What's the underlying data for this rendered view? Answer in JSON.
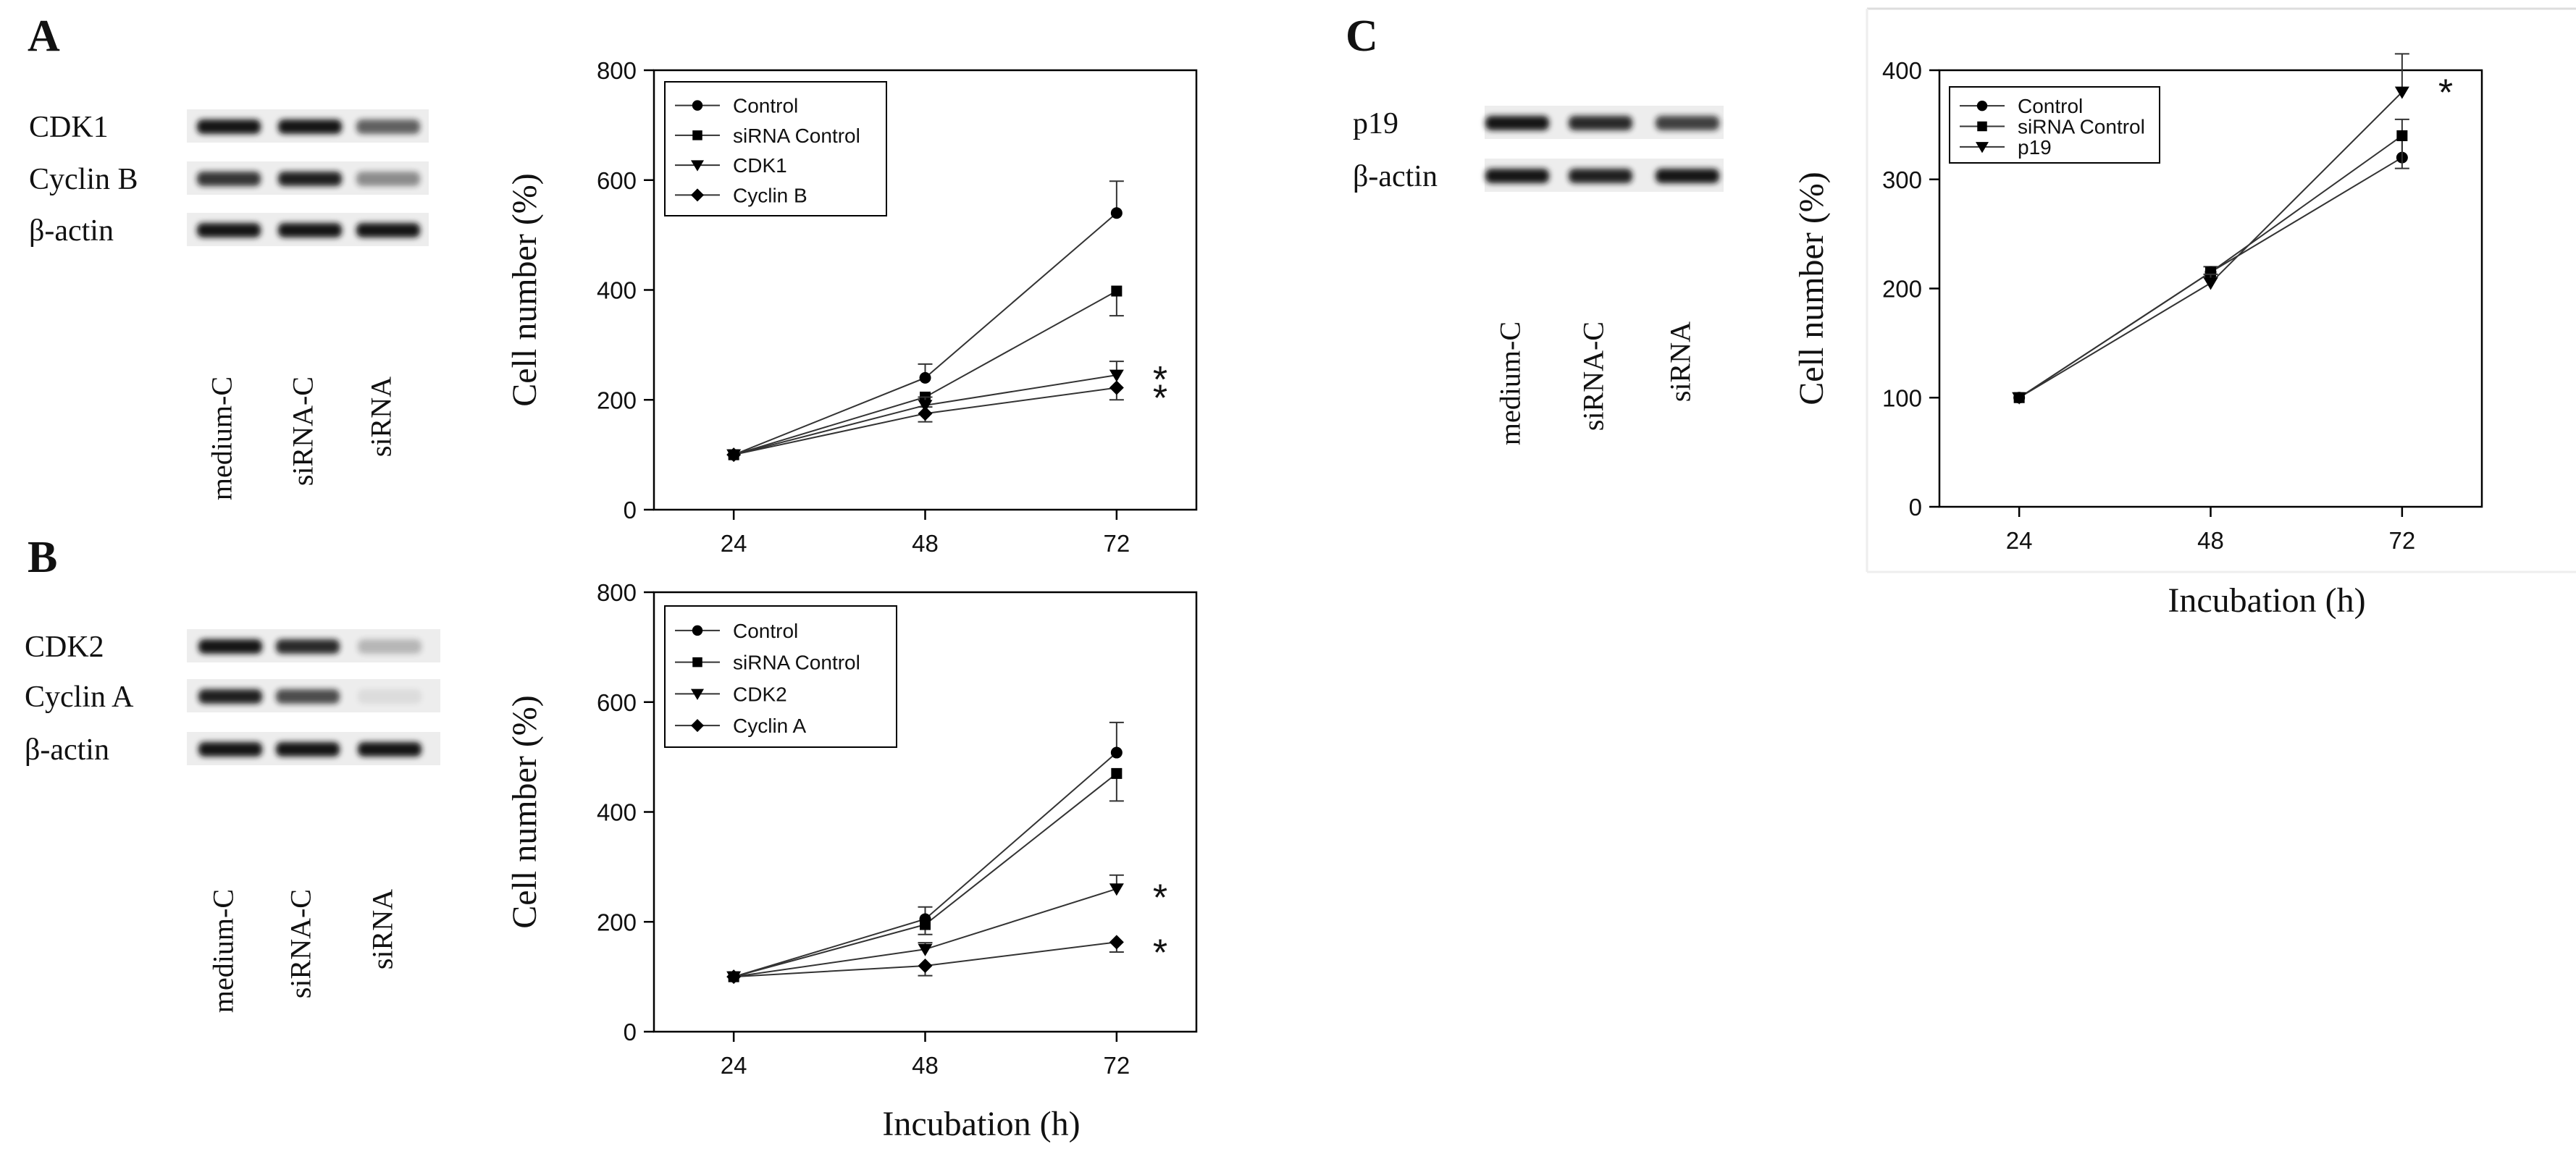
{
  "panels": [
    {
      "letter": "A",
      "blot": {
        "rows": [
          "CDK1",
          "Cyclin B",
          "β-actin"
        ],
        "lanes": [
          "medium-C",
          "siRNA-C",
          "siRNA"
        ]
      }
    },
    {
      "letter": "B",
      "blot": {
        "rows": [
          "CDK2",
          "Cyclin A",
          "β-actin"
        ],
        "lanes": [
          "medium-C",
          "siRNA-C",
          "siRNA"
        ]
      }
    },
    {
      "letter": "C",
      "blot": {
        "rows": [
          "p19",
          "β-actin"
        ],
        "lanes": [
          "medium-C",
          "siRNA-C",
          "siRNA"
        ]
      }
    }
  ],
  "chart_data": [
    {
      "panel": "A",
      "type": "line",
      "title": "",
      "xlabel": "",
      "ylabel": "Cell number (%)",
      "x": [
        24,
        48,
        72
      ],
      "xticks": [
        "24",
        "48",
        "72"
      ],
      "ylim": [
        0,
        800
      ],
      "yticks": [
        0,
        200,
        400,
        600,
        800
      ],
      "legend_position": "top-left",
      "series": [
        {
          "name": "Control",
          "marker": "circle",
          "values": [
            100,
            240,
            540
          ],
          "errors": [
            0,
            25,
            58
          ]
        },
        {
          "name": "siRNA Control",
          "marker": "square",
          "values": [
            100,
            205,
            398
          ],
          "errors": [
            0,
            18,
            45
          ]
        },
        {
          "name": "CDK1",
          "marker": "triangle-down",
          "values": [
            100,
            190,
            245
          ],
          "errors": [
            0,
            15,
            25
          ]
        },
        {
          "name": "Cyclin B",
          "marker": "diamond",
          "values": [
            100,
            175,
            222
          ],
          "errors": [
            0,
            15,
            22
          ]
        }
      ],
      "annotations": [
        {
          "text": "*",
          "x": 72,
          "y": 248
        },
        {
          "text": "*",
          "x": 72,
          "y": 214
        }
      ]
    },
    {
      "panel": "B",
      "type": "line",
      "title": "",
      "xlabel": "Incubation  (h)",
      "ylabel": "Cell number (%)",
      "x": [
        24,
        48,
        72
      ],
      "xticks": [
        "24",
        "48",
        "72"
      ],
      "ylim": [
        0,
        800
      ],
      "yticks": [
        0,
        200,
        400,
        600,
        800
      ],
      "legend_position": "top-left",
      "series": [
        {
          "name": "Control",
          "marker": "circle",
          "values": [
            100,
            205,
            508
          ],
          "errors": [
            0,
            22,
            55
          ]
        },
        {
          "name": "siRNA Control",
          "marker": "square",
          "values": [
            100,
            195,
            470
          ],
          "errors": [
            0,
            18,
            50
          ]
        },
        {
          "name": "CDK2",
          "marker": "triangle-down",
          "values": [
            100,
            150,
            260
          ],
          "errors": [
            0,
            12,
            25
          ]
        },
        {
          "name": "Cyclin A",
          "marker": "diamond",
          "values": [
            100,
            120,
            163
          ],
          "errors": [
            0,
            18,
            18
          ]
        }
      ],
      "annotations": [
        {
          "text": "*",
          "x": 72,
          "y": 255
        },
        {
          "text": "*",
          "x": 72,
          "y": 155
        }
      ]
    },
    {
      "panel": "C",
      "type": "line",
      "title": "",
      "xlabel": "Incubation  (h)",
      "ylabel": "Cell number (%)",
      "x": [
        24,
        48,
        72
      ],
      "xticks": [
        "24",
        "48",
        "72"
      ],
      "ylim": [
        0,
        400
      ],
      "yticks": [
        0,
        100,
        200,
        300,
        400
      ],
      "legend_position": "top-left",
      "series": [
        {
          "name": "Control",
          "marker": "circle",
          "values": [
            100,
            215,
            320
          ],
          "errors": [
            0,
            5,
            35
          ]
        },
        {
          "name": "siRNA Control",
          "marker": "square",
          "values": [
            100,
            215,
            340
          ],
          "errors": [
            0,
            5,
            30
          ]
        },
        {
          "name": "p19",
          "marker": "triangle-down",
          "values": [
            100,
            205,
            380
          ],
          "errors": [
            0,
            8,
            35
          ]
        }
      ],
      "annotations": [
        {
          "text": "*",
          "x": 72,
          "y": 385
        }
      ]
    }
  ]
}
